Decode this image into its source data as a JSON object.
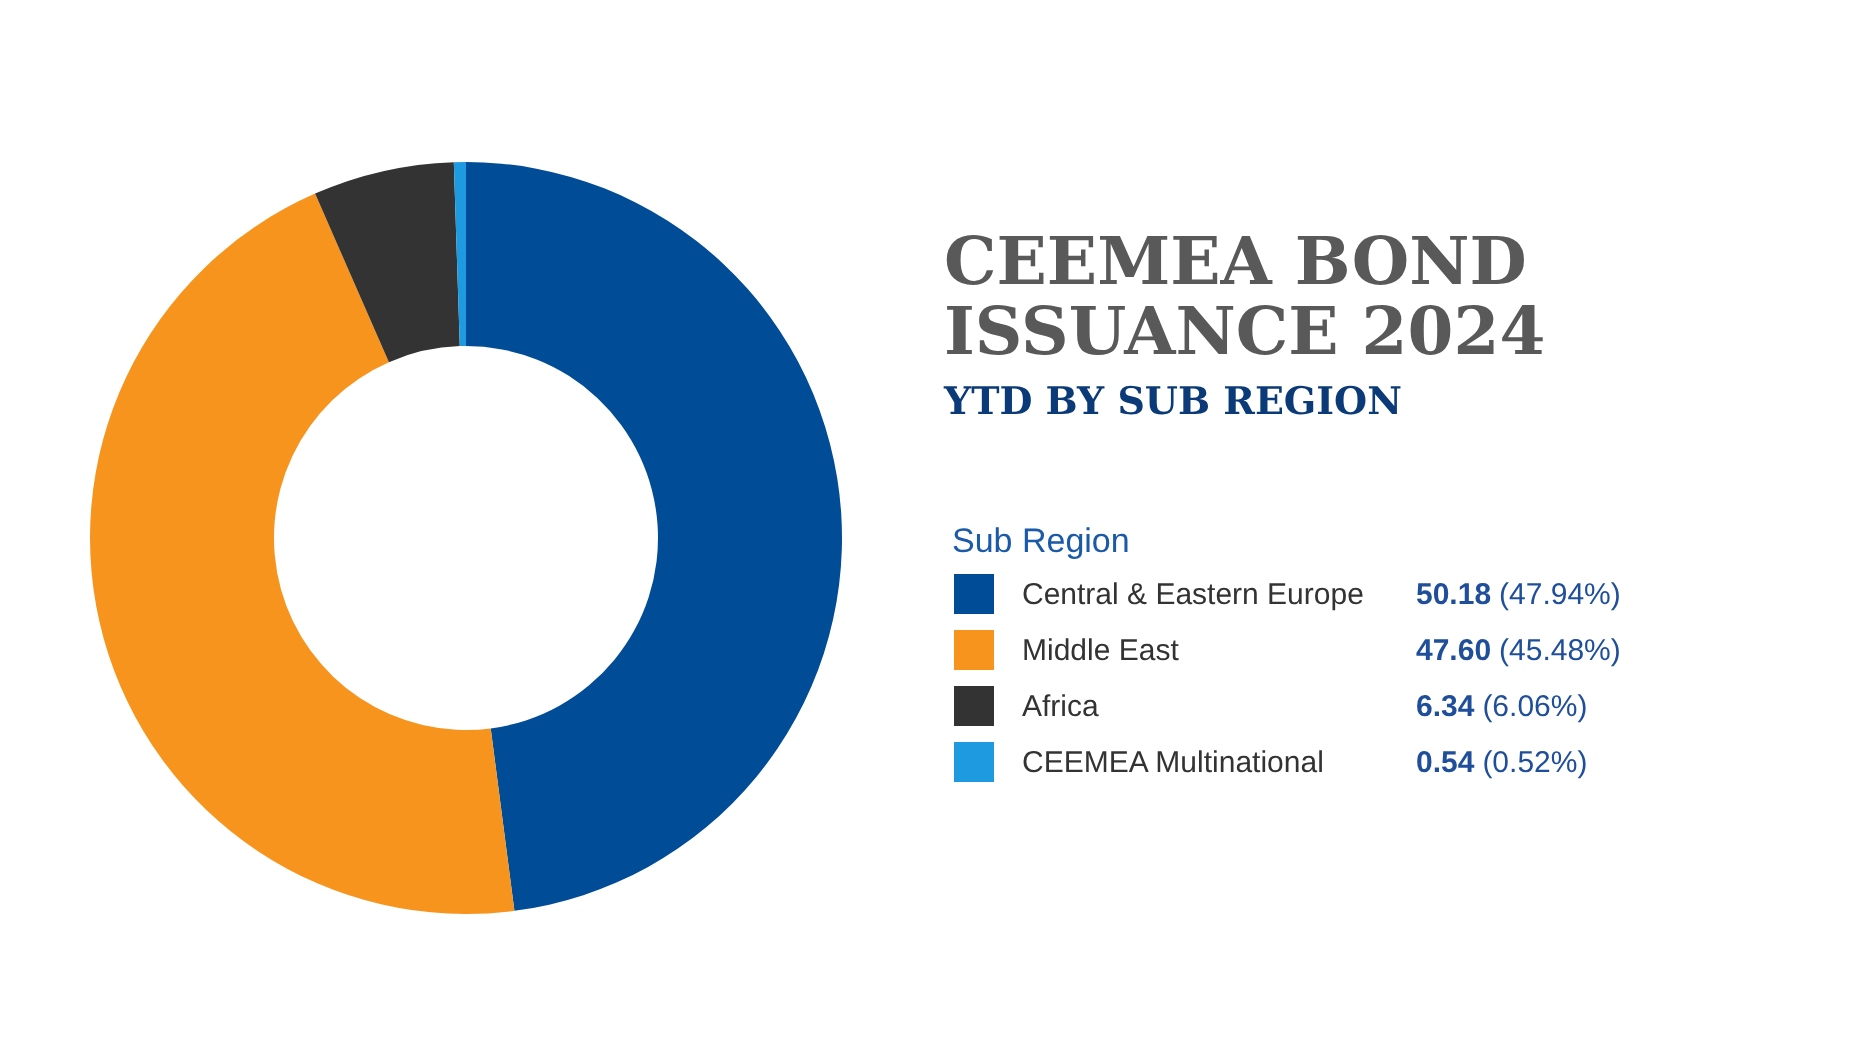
{
  "chart_data": {
    "type": "donut",
    "title": "CEEMEA BOND ISSUANCE 2024",
    "subtitle": "YTD BY SUB REGION",
    "legend_title": "Sub Region",
    "categories": [
      "Central & Eastern Europe",
      "Middle East",
      "Africa",
      "CEEMEA Multinational"
    ],
    "values": [
      50.18,
      47.6,
      6.34,
      0.54
    ],
    "colors": [
      "#004c97",
      "#f7941d",
      "#333333",
      "#1e9be0"
    ],
    "value_labels": [
      "50.18 (47.94%)",
      "47.60 (45.48%)",
      "6.34 (6.06%)",
      "0.54 (0.52%)"
    ],
    "legend": "right"
  }
}
